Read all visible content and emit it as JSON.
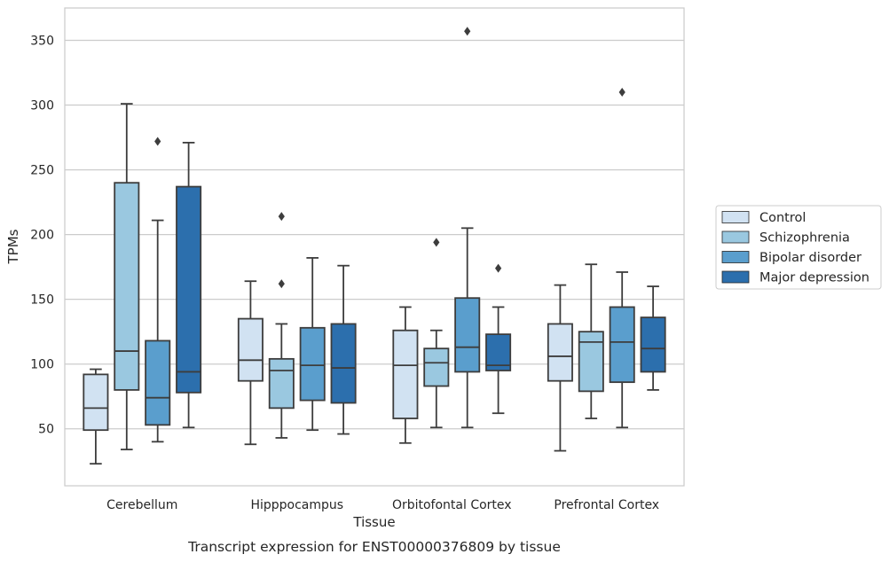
{
  "chart_data": {
    "type": "box",
    "caption": "Transcript expression for ENST00000376809 by tissue",
    "xlabel": "Tissue",
    "ylabel": "TPMs",
    "ylim": [
      6,
      375
    ],
    "yticks": [
      50,
      100,
      150,
      200,
      250,
      300,
      350
    ],
    "grid": true,
    "legend_position": "outside-right",
    "categories": [
      "Cerebellum",
      "Hipppocampus",
      "Orbitofontal Cortex",
      "Prefrontal Cortex"
    ],
    "series": [
      {
        "name": "Control",
        "color": "#d1e2f2",
        "boxes": [
          {
            "whislo": 23,
            "q1": 49,
            "med": 66,
            "q3": 92,
            "whishi": 96,
            "fliers": []
          },
          {
            "whislo": 38,
            "q1": 87,
            "med": 103,
            "q3": 135,
            "whishi": 164,
            "fliers": []
          },
          {
            "whislo": 39,
            "q1": 58,
            "med": 99,
            "q3": 126,
            "whishi": 144,
            "fliers": []
          },
          {
            "whislo": 33,
            "q1": 87,
            "med": 106,
            "q3": 131,
            "whishi": 161,
            "fliers": []
          }
        ]
      },
      {
        "name": "Schizophrenia",
        "color": "#9ac8e0",
        "boxes": [
          {
            "whislo": 34,
            "q1": 80,
            "med": 110,
            "q3": 240,
            "whishi": 301,
            "fliers": []
          },
          {
            "whislo": 43,
            "q1": 66,
            "med": 95,
            "q3": 104,
            "whishi": 131,
            "fliers": [
              162,
              214
            ]
          },
          {
            "whislo": 51,
            "q1": 83,
            "med": 101,
            "q3": 112,
            "whishi": 126,
            "fliers": [
              194
            ]
          },
          {
            "whislo": 58,
            "q1": 79,
            "med": 117,
            "q3": 125,
            "whishi": 177,
            "fliers": []
          }
        ]
      },
      {
        "name": "Bipolar disorder",
        "color": "#5a9ecd",
        "boxes": [
          {
            "whislo": 40,
            "q1": 53,
            "med": 74,
            "q3": 118,
            "whishi": 211,
            "fliers": [
              272
            ]
          },
          {
            "whislo": 49,
            "q1": 72,
            "med": 99,
            "q3": 128,
            "whishi": 182,
            "fliers": []
          },
          {
            "whislo": 51,
            "q1": 94,
            "med": 113,
            "q3": 151,
            "whishi": 205,
            "fliers": [
              357
            ]
          },
          {
            "whislo": 51,
            "q1": 86,
            "med": 117,
            "q3": 144,
            "whishi": 171,
            "fliers": [
              310
            ]
          }
        ]
      },
      {
        "name": "Major depression",
        "color": "#2c6fad",
        "boxes": [
          {
            "whislo": 51,
            "q1": 78,
            "med": 94,
            "q3": 237,
            "whishi": 271,
            "fliers": []
          },
          {
            "whislo": 46,
            "q1": 70,
            "med": 97,
            "q3": 131,
            "whishi": 176,
            "fliers": []
          },
          {
            "whislo": 62,
            "q1": 95,
            "med": 99,
            "q3": 123,
            "whishi": 144,
            "fliers": [
              174
            ]
          },
          {
            "whislo": 80,
            "q1": 94,
            "med": 112,
            "q3": 136,
            "whishi": 160,
            "fliers": []
          }
        ]
      }
    ]
  }
}
